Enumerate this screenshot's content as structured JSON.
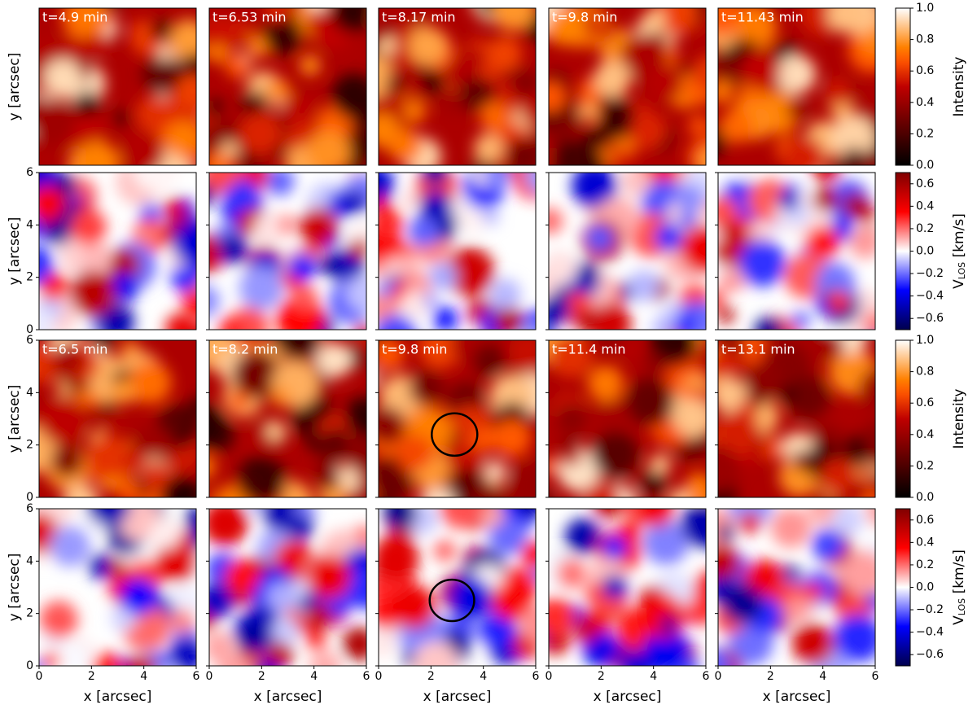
{
  "chart_data": [
    {
      "type": "heatmap",
      "colormap": "heat",
      "panel_titles": [
        "t=4.9 min",
        "t=6.53 min",
        "t=8.17 min",
        "t=9.8 min",
        "t=11.43 min"
      ],
      "xlim": [
        0,
        6
      ],
      "ylim": [
        0,
        6
      ],
      "ylabel": "y [arcsec]",
      "colorbar": {
        "label": "Intensity",
        "lim": [
          0,
          1
        ],
        "ticks": [
          {
            "value": 0,
            "label": "0.0"
          },
          0.2,
          0.4,
          0.6,
          0.8,
          {
            "value": 1,
            "label": "1.0"
          }
        ]
      }
    },
    {
      "type": "heatmap",
      "colormap": "seismic",
      "xlim": [
        0,
        6
      ],
      "ylim": [
        0,
        6
      ],
      "yticks": [
        0,
        2,
        4,
        6
      ],
      "ylabel": "y [arcsec]",
      "colorbar": {
        "label_main": "V",
        "label_sub": "LOS",
        "label_unit": " [km/s]",
        "lim": [
          -0.7,
          0.7
        ],
        "ticks": [
          {
            "value": -0.6,
            "label": "−0.6"
          },
          {
            "value": -0.4,
            "label": "−0.4"
          },
          {
            "value": -0.2,
            "label": "−0.2"
          },
          {
            "value": 0,
            "label": "0.0"
          },
          0.2,
          0.4,
          0.6
        ]
      }
    },
    {
      "type": "heatmap",
      "colormap": "heat",
      "panel_titles": [
        "t=6.5 min",
        "t=8.2 min",
        "t=9.8 min",
        "t=11.4 min",
        "t=13.1 min"
      ],
      "xlim": [
        0,
        6
      ],
      "ylim": [
        0,
        6
      ],
      "yticks": [
        0,
        2,
        4,
        6
      ],
      "ylabel": "y [arcsec]",
      "annotation_circle": {
        "center": [
          2.9,
          2.4
        ],
        "radius": 0.87
      },
      "colorbar": {
        "label": "Intensity",
        "lim": [
          0,
          1
        ],
        "ticks": [
          {
            "value": 0,
            "label": "0.0"
          },
          0.2,
          0.4,
          0.6,
          0.8,
          {
            "value": 1,
            "label": "1.0"
          }
        ]
      }
    },
    {
      "type": "heatmap",
      "colormap": "seismic",
      "xlim": [
        0,
        6
      ],
      "ylim": [
        0,
        6
      ],
      "xticks": [
        0,
        2,
        4,
        6
      ],
      "yticks": [
        0,
        2,
        4,
        6
      ],
      "xlabel": "x [arcsec]",
      "ylabel": "y [arcsec]",
      "annotation_circle": {
        "center": [
          2.8,
          2.5
        ],
        "radius": 0.85
      },
      "colorbar": {
        "label_main": "V",
        "label_sub": "LOS",
        "label_unit": " [km/s]",
        "lim": [
          -0.7,
          0.7
        ],
        "ticks": [
          {
            "value": -0.6,
            "label": "−0.6"
          },
          {
            "value": -0.4,
            "label": "−0.4"
          },
          {
            "value": -0.2,
            "label": "−0.2"
          },
          {
            "value": 0,
            "label": "0.0"
          },
          0.2,
          0.4,
          0.6
        ]
      }
    }
  ]
}
